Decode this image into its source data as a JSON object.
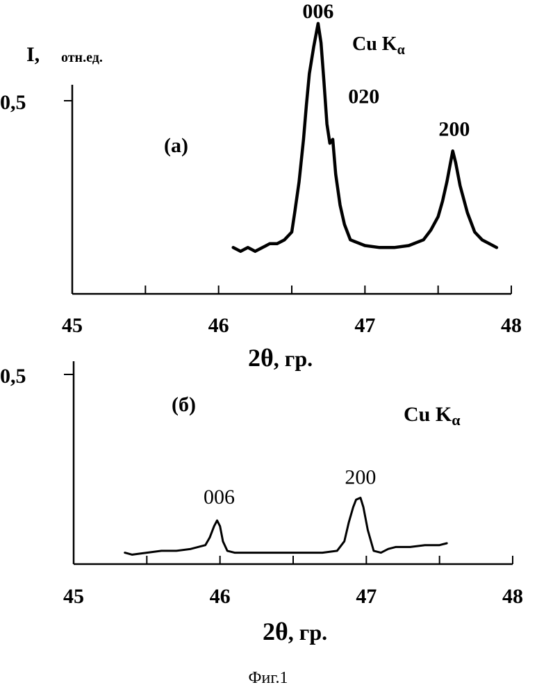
{
  "figure_caption": "Фиг.1",
  "chart_data": [
    {
      "type": "line",
      "panel_label": "(a)",
      "ylabel_main": "I,",
      "ylabel_unit": "отн.ед.",
      "xlabel_main": "2θ",
      "xlabel_unit": ", гр.",
      "radiation_main": "Cu K",
      "radiation_sub": "α",
      "xlim": [
        45,
        48
      ],
      "ylim": [
        0,
        0.75
      ],
      "x_ticks": [
        45,
        46,
        47,
        48
      ],
      "x_tick_labels": [
        "45",
        "46",
        "47",
        "48"
      ],
      "x_minor_ticks": [
        45.5,
        46.5,
        47.5
      ],
      "y_ticks": [
        0.5
      ],
      "y_tick_labels": [
        "0,5"
      ],
      "grid": false,
      "series": [
        {
          "x": [
            46.1,
            46.15,
            46.2,
            46.25,
            46.3,
            46.35,
            46.4,
            46.45,
            46.5,
            46.52,
            46.55,
            46.58,
            46.6,
            46.62,
            46.65,
            46.67,
            46.68,
            46.7,
            46.72,
            46.74,
            46.76,
            46.78,
            46.8,
            46.83,
            46.86,
            46.9,
            47.0,
            47.1,
            47.2,
            47.3,
            47.4,
            47.45,
            47.5,
            47.53,
            47.56,
            47.58,
            47.6,
            47.62,
            47.65,
            47.7,
            47.75,
            47.8,
            47.85,
            47.9
          ],
          "y": [
            0.12,
            0.11,
            0.12,
            0.11,
            0.12,
            0.13,
            0.13,
            0.14,
            0.16,
            0.21,
            0.29,
            0.4,
            0.49,
            0.57,
            0.64,
            0.68,
            0.7,
            0.65,
            0.55,
            0.44,
            0.39,
            0.4,
            0.31,
            0.23,
            0.18,
            0.14,
            0.125,
            0.12,
            0.12,
            0.125,
            0.14,
            0.165,
            0.2,
            0.24,
            0.29,
            0.33,
            0.37,
            0.34,
            0.28,
            0.21,
            0.16,
            0.14,
            0.13,
            0.12
          ]
        }
      ],
      "annotations": [
        {
          "text": "006",
          "x": 46.68,
          "y": 0.7
        },
        {
          "text": "020",
          "x": 46.8,
          "y": 0.4
        },
        {
          "text": "200",
          "x": 47.61,
          "y": 0.37
        }
      ]
    },
    {
      "type": "line",
      "panel_label": "(б)",
      "xlabel_main": "2θ",
      "xlabel_unit": ", гр.",
      "radiation_main": "Cu K",
      "radiation_sub": "α",
      "xlim": [
        45,
        48
      ],
      "ylim": [
        0,
        0.5
      ],
      "x_ticks": [
        45,
        46,
        47,
        48
      ],
      "x_tick_labels": [
        "45",
        "46",
        "47",
        "48"
      ],
      "x_minor_ticks": [
        45.5,
        46.5,
        47.5
      ],
      "y_ticks": [
        0.5
      ],
      "y_tick_labels": [
        "0,5"
      ],
      "grid": false,
      "series": [
        {
          "x": [
            45.35,
            45.4,
            45.5,
            45.6,
            45.7,
            45.8,
            45.9,
            45.93,
            45.96,
            45.98,
            46.0,
            46.02,
            46.05,
            46.1,
            46.3,
            46.5,
            46.7,
            46.8,
            46.85,
            46.88,
            46.91,
            46.93,
            46.96,
            46.98,
            47.01,
            47.05,
            47.1,
            47.15,
            47.2,
            47.3,
            47.4,
            47.5,
            47.55
          ],
          "y": [
            0.03,
            0.025,
            0.03,
            0.035,
            0.035,
            0.04,
            0.05,
            0.07,
            0.1,
            0.115,
            0.1,
            0.06,
            0.035,
            0.03,
            0.03,
            0.03,
            0.03,
            0.035,
            0.06,
            0.11,
            0.15,
            0.17,
            0.175,
            0.15,
            0.09,
            0.035,
            0.03,
            0.04,
            0.045,
            0.045,
            0.05,
            0.05,
            0.055
          ]
        }
      ],
      "annotations": [
        {
          "text": "006",
          "x": 45.99,
          "y": 0.115
        },
        {
          "text": "200",
          "x": 46.96,
          "y": 0.175
        }
      ]
    }
  ]
}
